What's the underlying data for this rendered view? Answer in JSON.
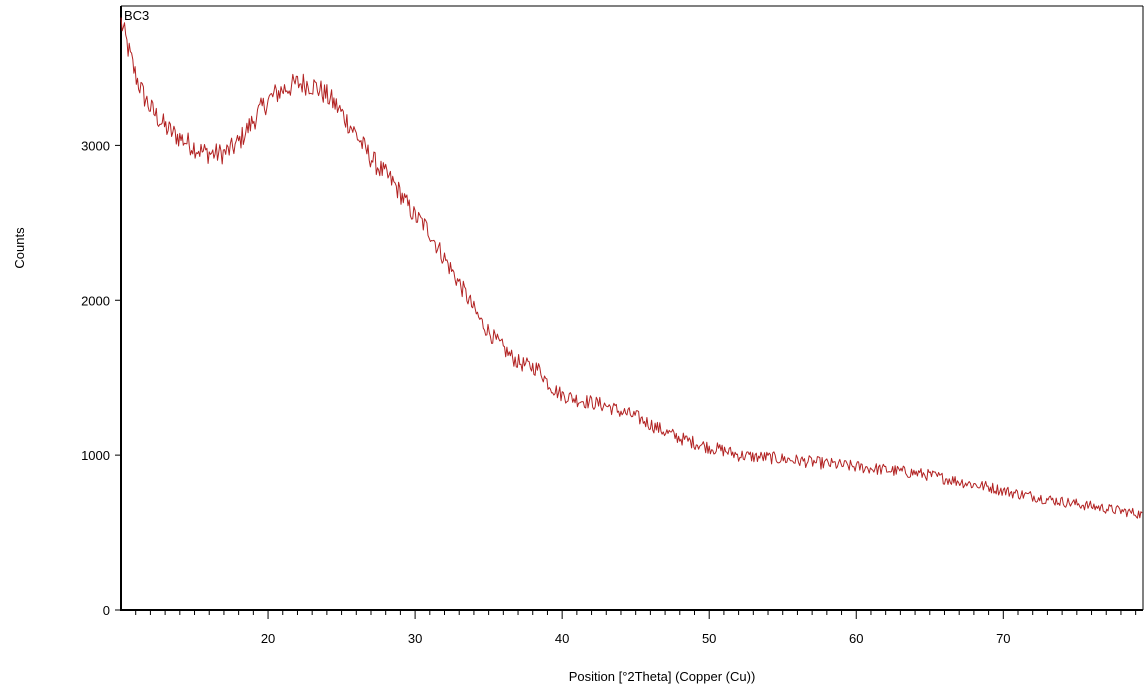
{
  "chart_data": {
    "type": "line",
    "title": "",
    "xlabel": "Position [°2Theta] (Copper (Cu))",
    "ylabel": "Counts",
    "xlim": [
      10,
      79.5
    ],
    "ylim": [
      0,
      3900
    ],
    "x_ticks": [
      20,
      30,
      40,
      50,
      60,
      70
    ],
    "y_ticks": [
      0,
      1000,
      2000,
      3000
    ],
    "x_tick_labels": [
      "20",
      "30",
      "40",
      "50",
      "60",
      "70"
    ],
    "y_tick_labels": [
      "0",
      "1000",
      "2000",
      "3000"
    ],
    "x_minor_step": 1,
    "grid": false,
    "legend": "none",
    "line_color": "#b22222",
    "series": [
      {
        "name": "BC3",
        "x": [
          10.0,
          10.5,
          11.0,
          11.5,
          12.0,
          12.5,
          13.0,
          13.5,
          14.0,
          14.5,
          15.0,
          15.5,
          16.0,
          16.5,
          17.0,
          17.5,
          18.0,
          18.5,
          19.0,
          19.5,
          20.0,
          20.5,
          21.0,
          21.5,
          22.0,
          22.5,
          23.0,
          23.5,
          24.0,
          24.5,
          25.0,
          25.5,
          26.0,
          26.5,
          27.0,
          27.5,
          28.0,
          28.5,
          29.0,
          29.5,
          30.0,
          30.5,
          31.0,
          31.5,
          32.0,
          32.5,
          33.0,
          33.5,
          34.0,
          34.5,
          35.0,
          35.5,
          36.0,
          36.5,
          37.0,
          37.5,
          38.0,
          38.5,
          39.0,
          39.5,
          40.0,
          41.0,
          42.0,
          43.0,
          44.0,
          45.0,
          46.0,
          47.0,
          48.0,
          49.0,
          50.0,
          51.0,
          52.0,
          53.0,
          54.0,
          55.0,
          56.0,
          57.0,
          58.0,
          59.0,
          60.0,
          61.0,
          62.0,
          63.0,
          64.0,
          65.0,
          66.0,
          67.0,
          68.0,
          69.0,
          70.0,
          71.0,
          72.0,
          73.0,
          74.0,
          75.0,
          76.0,
          77.0,
          78.0,
          79.0,
          79.5
        ],
        "values": [
          3800,
          3620,
          3450,
          3330,
          3240,
          3180,
          3120,
          3080,
          3050,
          3020,
          2990,
          2960,
          2950,
          2945,
          2950,
          2975,
          3020,
          3090,
          3160,
          3230,
          3290,
          3330,
          3360,
          3380,
          3400,
          3400,
          3390,
          3360,
          3320,
          3270,
          3210,
          3140,
          3070,
          2990,
          2920,
          2860,
          2810,
          2760,
          2690,
          2610,
          2540,
          2500,
          2440,
          2350,
          2270,
          2190,
          2110,
          2030,
          1940,
          1860,
          1800,
          1740,
          1690,
          1640,
          1600,
          1580,
          1570,
          1550,
          1470,
          1420,
          1390,
          1360,
          1340,
          1320,
          1280,
          1250,
          1200,
          1150,
          1110,
          1080,
          1050,
          1030,
          1000,
          990,
          985,
          975,
          965,
          955,
          945,
          935,
          925,
          915,
          905,
          895,
          885,
          870,
          850,
          830,
          810,
          795,
          770,
          750,
          735,
          715,
          700,
          685,
          670,
          655,
          640,
          625,
          615
        ]
      }
    ]
  }
}
